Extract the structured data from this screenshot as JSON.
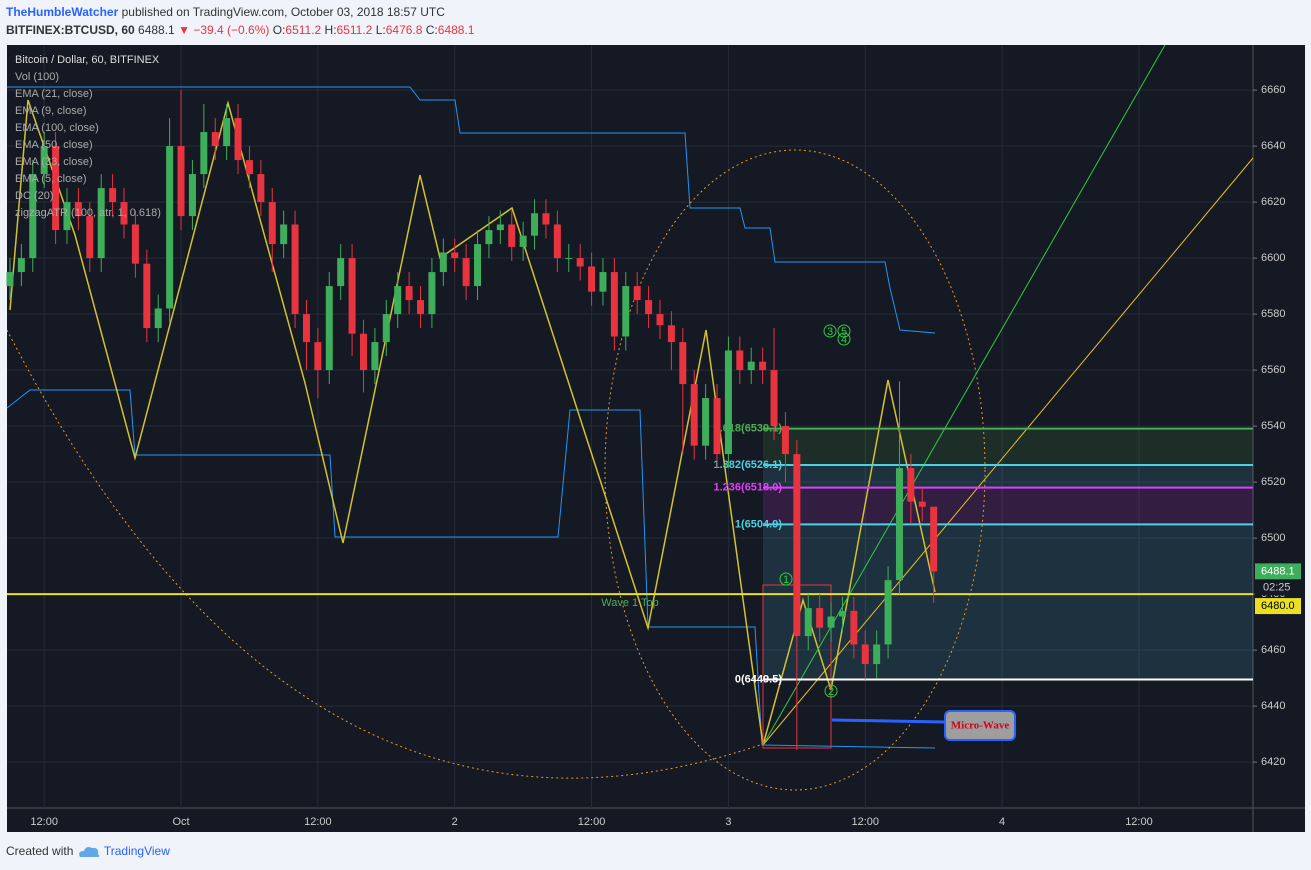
{
  "header": {
    "author": "TheHumbleWatcher",
    "published": "published on TradingView.com, October 03, 2018 18:57 UTC",
    "symbol": "BITFINEX:BTCUSD, 60",
    "change": "−39.4 (−0.6%)",
    "ohlc_labels": [
      "O:",
      "H:",
      "L:",
      "C:"
    ]
  },
  "footer": {
    "created": "Created with",
    "brand": "TradingView"
  },
  "chart_data": {
    "type": "candlestick",
    "title": "Bitcoin / Dollar, 60, BITFINEX",
    "indicators": [
      "Vol (100)",
      "EMA (21, close)",
      "EMA (9, close)",
      "EMA (100, close)",
      "EMA (50, close)",
      "EMA (33, close)",
      "EMA (5, close)",
      "DC (20)",
      "zigzagATR (100, atr, 1, 0.618)"
    ],
    "up_color": "#3fae5a",
    "down_color": "#e8343f",
    "open": [
      6590,
      6595,
      6600,
      6630,
      6640,
      6610,
      6620,
      6615,
      6600,
      6625,
      6620,
      6612,
      6598,
      6575,
      6582,
      6640,
      6615,
      6630,
      6645,
      6640,
      6650,
      6635,
      6630,
      6620,
      6605,
      6612,
      6580,
      6570,
      6560,
      6590,
      6600,
      6573,
      6560,
      6570,
      6580,
      6590,
      6585,
      6580,
      6595,
      6602,
      6600,
      6590,
      6605,
      6610,
      6612,
      6604,
      6608,
      6616,
      6612,
      6600,
      6600,
      6597,
      6588,
      6595,
      6572,
      6590,
      6585,
      6580,
      6576,
      6570,
      6555,
      6533,
      6550,
      6530,
      6567,
      6560,
      6563,
      6560,
      6540,
      6530,
      6465,
      6475,
      6468,
      6472,
      6474,
      6462,
      6455,
      6462,
      6485,
      6525,
      6513,
      6511.2
    ],
    "high": [
      6600,
      6605,
      6635,
      6645,
      6645,
      6625,
      6625,
      6620,
      6630,
      6630,
      6625,
      6617,
      6603,
      6587,
      6650,
      6660,
      6635,
      6655,
      6650,
      6655,
      6655,
      6640,
      6635,
      6625,
      6617,
      6617,
      6585,
      6575,
      6595,
      6605,
      6605,
      6578,
      6575,
      6585,
      6595,
      6595,
      6590,
      6600,
      6607,
      6607,
      6605,
      6610,
      6615,
      6617,
      6617,
      6613,
      6621,
      6621,
      6617,
      6605,
      6605,
      6602,
      6600,
      6600,
      6595,
      6595,
      6590,
      6585,
      6581,
      6575,
      6560,
      6555,
      6555,
      6572,
      6572,
      6568,
      6568,
      6575,
      6545,
      6535,
      6480,
      6480,
      6477,
      6479,
      6479,
      6467,
      6467,
      6490,
      6556,
      6530,
      6518,
      6511.2
    ],
    "low": [
      6585,
      6590,
      6595,
      6625,
      6605,
      6605,
      6610,
      6595,
      6595,
      6615,
      6607,
      6593,
      6570,
      6570,
      6577,
      6610,
      6610,
      6625,
      6635,
      6635,
      6630,
      6625,
      6615,
      6595,
      6600,
      6575,
      6560,
      6550,
      6555,
      6585,
      6565,
      6552,
      6555,
      6565,
      6575,
      6580,
      6575,
      6575,
      6590,
      6595,
      6585,
      6585,
      6600,
      6605,
      6599,
      6599,
      6603,
      6607,
      6595,
      6595,
      6592,
      6583,
      6583,
      6567,
      6567,
      6580,
      6575,
      6571,
      6560,
      6530,
      6528,
      6528,
      6525,
      6525,
      6555,
      6555,
      6555,
      6535,
      6520,
      6424.4,
      6460,
      6463,
      6463,
      6467,
      6457,
      6449.5,
      6450,
      6457,
      6480,
      6505,
      6506,
      6476.8
    ],
    "close": [
      6595,
      6600,
      6630,
      6640,
      6610,
      6620,
      6615,
      6600,
      6625,
      6620,
      6612,
      6598,
      6575,
      6582,
      6640,
      6615,
      6630,
      6645,
      6640,
      6650,
      6635,
      6630,
      6620,
      6605,
      6612,
      6580,
      6570,
      6560,
      6590,
      6600,
      6573,
      6560,
      6570,
      6580,
      6590,
      6585,
      6580,
      6595,
      6602,
      6600,
      6590,
      6605,
      6610,
      6612,
      6604,
      6608,
      6616,
      6612,
      6600,
      6600,
      6597,
      6588,
      6595,
      6572,
      6590,
      6585,
      6580,
      6576,
      6570,
      6555,
      6533,
      6550,
      6530,
      6567,
      6560,
      6563,
      6560,
      6540,
      6530,
      6465,
      6475,
      6468,
      6472,
      6474,
      6462,
      6455,
      6462,
      6485,
      6525,
      6513,
      6511.2,
      6488.1
    ],
    "ylim": [
      6403.6,
      6676.1
    ],
    "yticks": [
      6420,
      6440,
      6460,
      6480,
      6500,
      6520,
      6540,
      6560,
      6580,
      6600,
      6620,
      6640,
      6660
    ],
    "xlim": [
      -0.26,
      109.0
    ],
    "xticks": [
      {
        "value": 3,
        "label": "12:00"
      },
      {
        "value": 15,
        "label": "Oct"
      },
      {
        "value": 27,
        "label": "12:00"
      },
      {
        "value": 39,
        "label": "2"
      },
      {
        "value": 51,
        "label": "12:00"
      },
      {
        "value": 63,
        "label": "3"
      },
      {
        "value": 75,
        "label": "12:00"
      },
      {
        "value": 87,
        "label": "4"
      },
      {
        "value": 99,
        "label": "12:00"
      }
    ],
    "grid": true,
    "fib_levels": [
      {
        "label": "1.618(6539.1)",
        "value": 6539.1,
        "color": "#4caf50"
      },
      {
        "label": "1.382(6526.1)",
        "value": 6526.1,
        "color": "#4dd0e1"
      },
      {
        "label": "1.236(6518.0)",
        "value": 6518.0,
        "color": "#e040fb"
      },
      {
        "label": "1(6504.9)",
        "value": 6504.9,
        "color": "#4dd0e1"
      },
      {
        "label": "0(6449.5)",
        "value": 6449.5,
        "color": "#ffffff"
      }
    ],
    "hline": {
      "label": "Wave 1 Top",
      "value": 6480,
      "value_label": "6480.0",
      "color": "#e8e020"
    },
    "countdown": "02:25",
    "waves": [
      "1",
      "2",
      "3",
      "4",
      "5"
    ],
    "callout": "Micro-Wave"
  }
}
